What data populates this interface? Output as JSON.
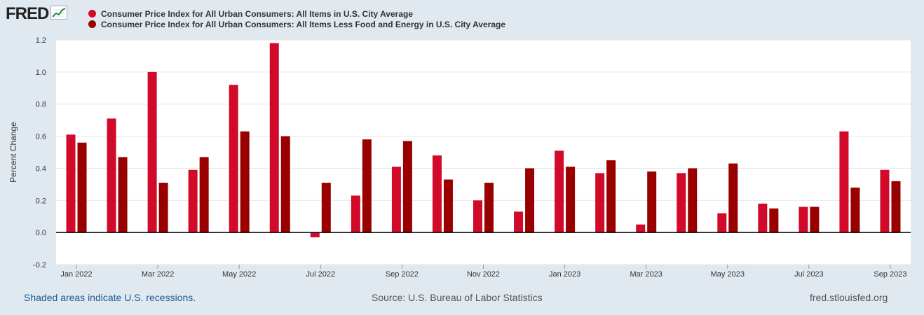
{
  "header": {
    "logo_text": "FRED",
    "logo_icon": "line-chart-icon"
  },
  "colors": {
    "series1": "#d10a2a",
    "series2": "#990000",
    "background": "#e1e9f0",
    "plot_background": "#ffffff"
  },
  "chart_data": {
    "type": "bar",
    "ylabel": "Percent Change",
    "xlabel": "",
    "ylim": [
      -0.2,
      1.2
    ],
    "yticks": [
      "-0.2",
      "0.0",
      "0.2",
      "0.4",
      "0.6",
      "0.8",
      "1.0",
      "1.2"
    ],
    "ytick_values": [
      -0.2,
      0.0,
      0.2,
      0.4,
      0.6,
      0.8,
      1.0,
      1.2
    ],
    "categories": [
      "Jan 2022",
      "Feb 2022",
      "Mar 2022",
      "Apr 2022",
      "May 2022",
      "Jun 2022",
      "Jul 2022",
      "Aug 2022",
      "Sep 2022",
      "Oct 2022",
      "Nov 2022",
      "Dec 2022",
      "Jan 2023",
      "Feb 2023",
      "Mar 2023",
      "Apr 2023",
      "May 2023",
      "Jun 2023",
      "Jul 2023",
      "Aug 2023",
      "Sep 2023"
    ],
    "xtick_labels": [
      "Jan 2022",
      "Mar 2022",
      "May 2022",
      "Jul 2022",
      "Sep 2022",
      "Nov 2022",
      "Jan 2023",
      "Mar 2023",
      "May 2023",
      "Jul 2023",
      "Sep 2023"
    ],
    "series": [
      {
        "name": "Consumer Price Index for All Urban Consumers: All Items in U.S. City Average",
        "values": [
          0.61,
          0.71,
          1.0,
          0.39,
          0.92,
          1.18,
          -0.03,
          0.23,
          0.41,
          0.48,
          0.2,
          0.13,
          0.51,
          0.37,
          0.05,
          0.37,
          0.12,
          0.18,
          0.16,
          0.63,
          0.39
        ]
      },
      {
        "name": "Consumer Price Index for All Urban Consumers: All Items Less Food and Energy in U.S. City Average",
        "values": [
          0.56,
          0.47,
          0.31,
          0.47,
          0.63,
          0.6,
          0.31,
          0.58,
          0.57,
          0.33,
          0.31,
          0.4,
          0.41,
          0.45,
          0.38,
          0.4,
          0.43,
          0.15,
          0.16,
          0.28,
          0.32
        ]
      }
    ],
    "legend_position": "top-left",
    "grid": true
  },
  "footer": {
    "recession_note": "Shaded areas indicate U.S. recessions.",
    "source": "Source: U.S. Bureau of Labor Statistics",
    "site": "fred.stlouisfed.org"
  }
}
